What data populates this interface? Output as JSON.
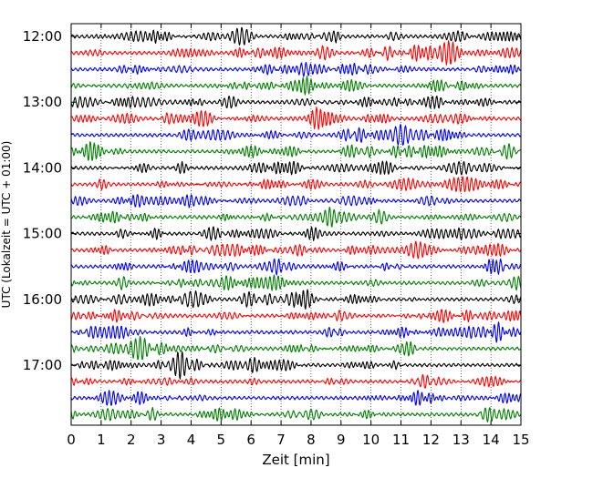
{
  "chart_data": {
    "type": "line",
    "subtype": "helicorder",
    "xlabel": "Zeit  [min]",
    "ylabel": "UTC (Lokalzeit = UTC + 01:00)",
    "xlim": [
      0,
      15
    ],
    "x_ticks": [
      "0",
      "1",
      "2",
      "3",
      "4",
      "5",
      "6",
      "7",
      "8",
      "9",
      "10",
      "11",
      "12",
      "13",
      "14",
      "15"
    ],
    "y_tick_labels": [
      "12:00",
      "13:00",
      "14:00",
      "15:00",
      "16:00",
      "17:00"
    ],
    "rows_per_hour": 4,
    "trace_colors": [
      "#000000",
      "#ff0000",
      "#0000ff",
      "#008000"
    ],
    "row_count": 24,
    "grid": "vertical dotted lines at each minute",
    "notable_event": {
      "row": 23,
      "minute": 11.2
    }
  }
}
